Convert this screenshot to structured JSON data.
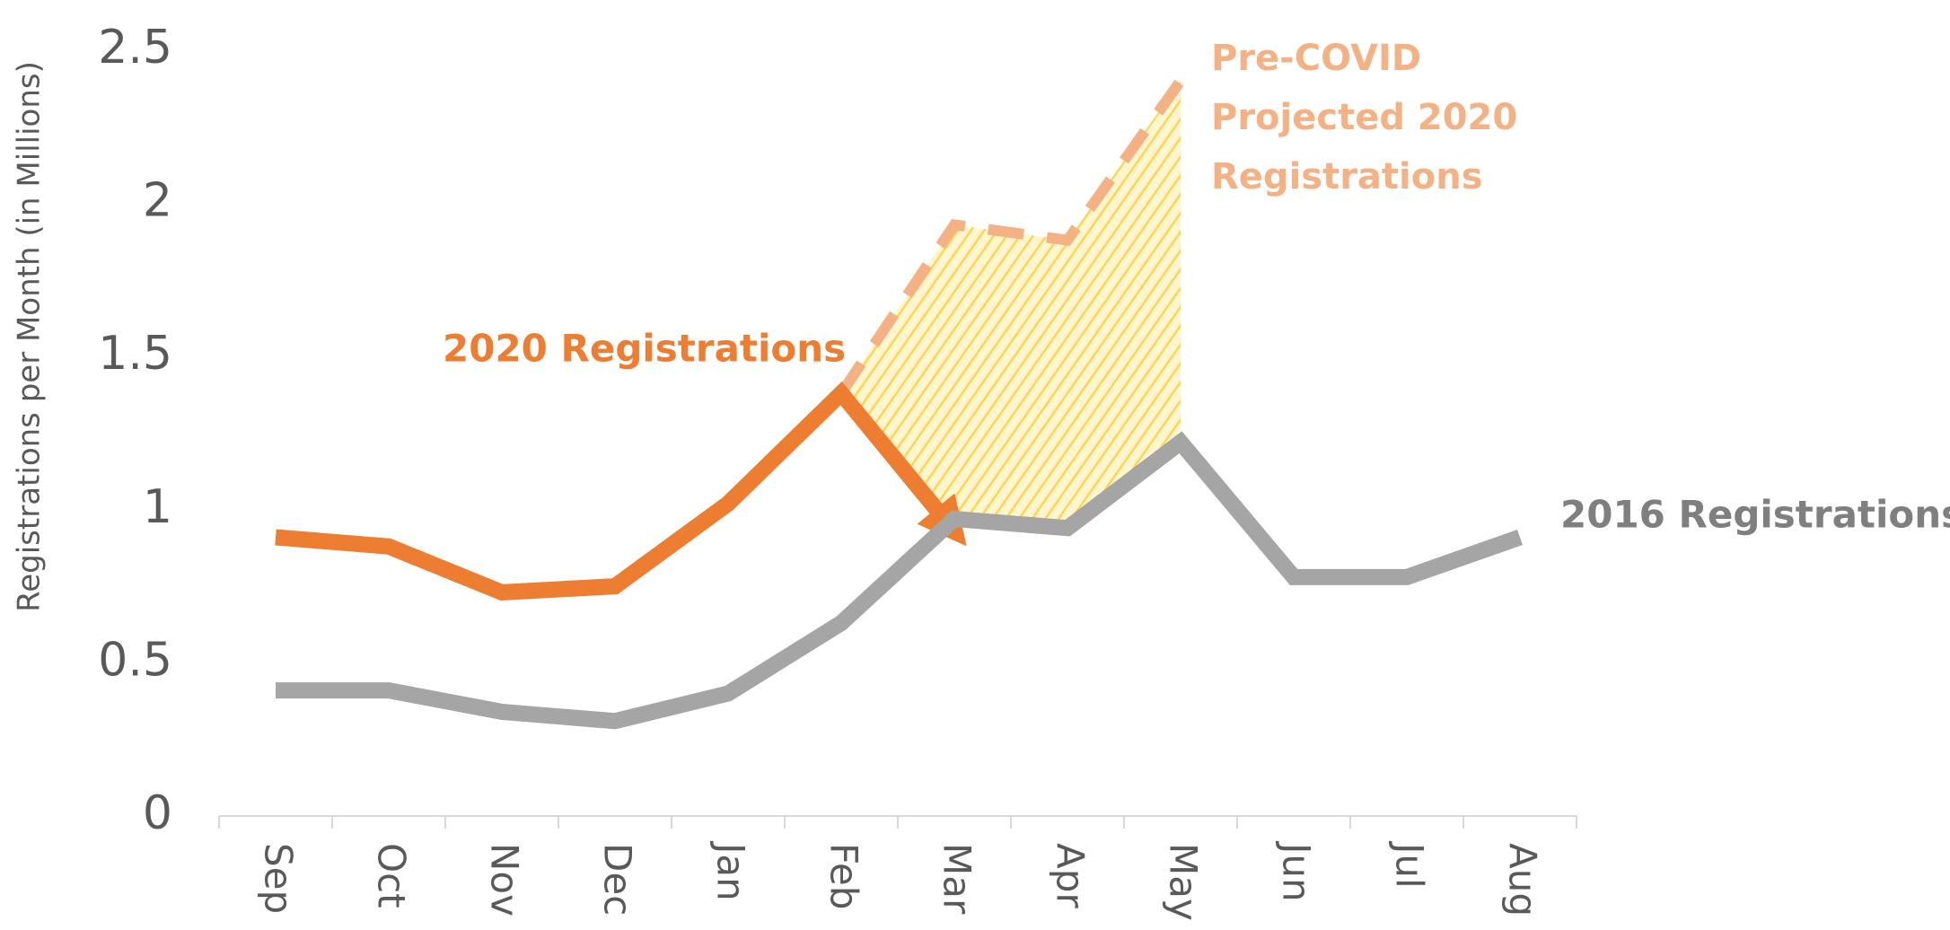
{
  "chart_data": {
    "type": "line",
    "y_label": "Registrations per Month (in Millions)",
    "categories": [
      "Sep",
      "Oct",
      "Nov",
      "Dec",
      "Jan",
      "Feb",
      "Mar",
      "Apr",
      "May",
      "Jun",
      "Jul",
      "Aug"
    ],
    "series": [
      {
        "name": "2020 Registrations",
        "color": "#ED7D31",
        "arrow": true,
        "values": [
          0.91,
          0.88,
          0.73,
          0.75,
          1.02,
          1.38,
          0.93,
          null,
          null,
          null,
          null,
          null
        ]
      },
      {
        "name": "2016 Registrations",
        "color": "#A5A5A5",
        "values": [
          0.41,
          0.41,
          0.34,
          0.31,
          0.4,
          0.63,
          0.97,
          0.94,
          1.22,
          0.78,
          0.78,
          0.91
        ]
      },
      {
        "name": "Pre-COVID Projected 2020 Registrations",
        "color": "#F4B183",
        "dashed": true,
        "values": [
          null,
          null,
          null,
          null,
          null,
          1.38,
          1.93,
          1.88,
          2.4,
          null,
          null,
          null
        ]
      }
    ],
    "ylim": [
      0,
      2.5
    ],
    "yticks": [
      0,
      0.5,
      1,
      1.5,
      2,
      2.5
    ],
    "grid": false
  }
}
